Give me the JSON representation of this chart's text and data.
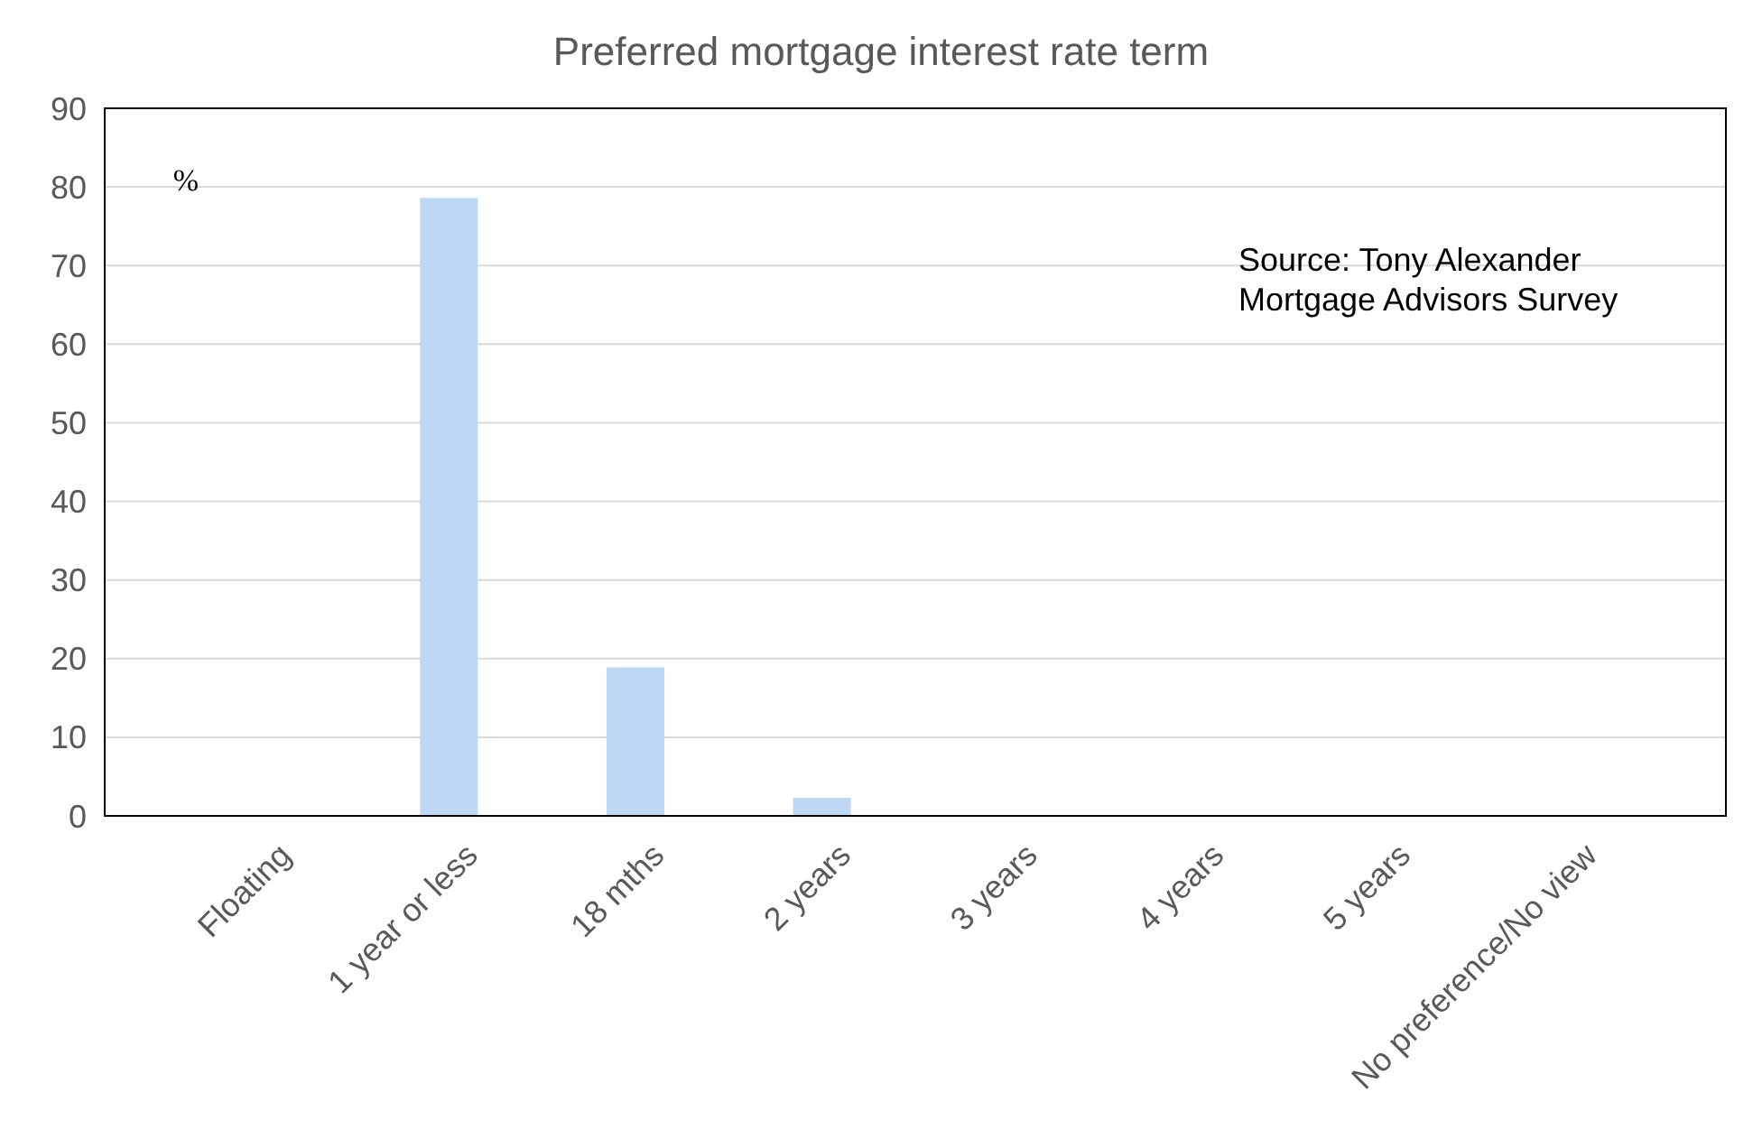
{
  "chart_data": {
    "type": "bar",
    "title": "Preferred mortgage interest rate term",
    "ylabel": "%",
    "categories": [
      "Floating",
      "1 year or less",
      "18 mths",
      "2 years",
      "3 years",
      "4 years",
      "5 years",
      "No preference/No view"
    ],
    "values": [
      0,
      78.6,
      18.9,
      2.3,
      0,
      0,
      0,
      0
    ],
    "color": "#bdd7f5",
    "ylim": [
      0,
      90
    ],
    "yticks": [
      0,
      10,
      20,
      30,
      40,
      50,
      60,
      70,
      80,
      90
    ],
    "grid": "y",
    "annotations": [
      "Source: Tony Alexander Mortgage Advisors Survey"
    ]
  }
}
